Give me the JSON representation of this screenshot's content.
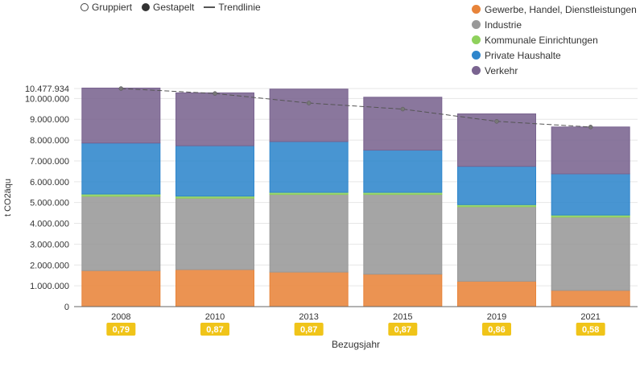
{
  "controls": {
    "grouped_label": "Gruppiert",
    "stacked_label": "Gestapelt",
    "trend_label": "Trendlinie"
  },
  "legend": [
    {
      "label": "Gewerbe, Handel, Dienstleistungen",
      "color": "#e8843a"
    },
    {
      "label": "Industrie",
      "color": "#999999"
    },
    {
      "label": "Kommunale Einrichtungen",
      "color": "#8fd15c"
    },
    {
      "label": "Private Haushalte",
      "color": "#2f86cc"
    },
    {
      "label": "Verkehr",
      "color": "#7a6490"
    }
  ],
  "chart_data": {
    "type": "bar",
    "stacked": true,
    "title": "",
    "xlabel": "Bezugsjahr",
    "ylabel": "t CO2äqu",
    "ylim": [
      0,
      10477934
    ],
    "y_max_label": "10.477.934",
    "y_ticks": [
      "0",
      "1.000.000",
      "2.000.000",
      "3.000.000",
      "4.000.000",
      "5.000.000",
      "6.000.000",
      "7.000.000",
      "8.000.000",
      "9.000.000",
      "10.000.000"
    ],
    "categories": [
      "2008",
      "2010",
      "2013",
      "2015",
      "2019",
      "2021"
    ],
    "badges": [
      "0,79",
      "0,87",
      "0,87",
      "0,87",
      "0,86",
      "0,58"
    ],
    "badge_color": "#f0c419",
    "series": [
      {
        "name": "Gewerbe, Handel, Dienstleistungen",
        "values": [
          1730000,
          1780000,
          1660000,
          1560000,
          1220000,
          780000
        ]
      },
      {
        "name": "Industrie",
        "values": [
          3570000,
          3430000,
          3730000,
          3830000,
          3580000,
          3520000
        ]
      },
      {
        "name": "Kommunale Einrichtungen",
        "values": [
          110000,
          100000,
          100000,
          100000,
          100000,
          100000
        ]
      },
      {
        "name": "Private Haushalte",
        "values": [
          2450000,
          2420000,
          2440000,
          2030000,
          1840000,
          1980000
        ]
      },
      {
        "name": "Verkehr",
        "values": [
          2640000,
          2540000,
          2520000,
          2540000,
          2520000,
          2250000
        ]
      }
    ],
    "trend": [
      10477934,
      10240000,
      9780000,
      9490000,
      8900000,
      8630000
    ]
  }
}
